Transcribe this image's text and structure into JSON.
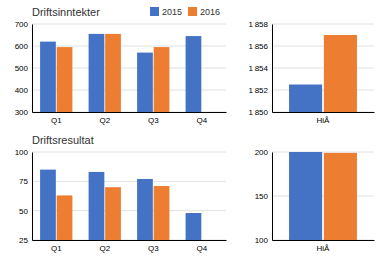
{
  "chart_data": [
    {
      "type": "bar",
      "title": "Driftsinntekter",
      "categories": [
        "Q1",
        "Q2",
        "Q3",
        "Q4"
      ],
      "series": [
        {
          "name": "2015",
          "color": "#4472C4",
          "values": [
            620,
            655,
            570,
            645
          ]
        },
        {
          "name": "2016",
          "color": "#ED7D31",
          "values": [
            595,
            655,
            595,
            null
          ]
        }
      ],
      "ylim": [
        300,
        700
      ],
      "yticks": [
        300,
        400,
        500,
        600,
        700
      ],
      "grid": true,
      "legend": "top"
    },
    {
      "type": "bar",
      "title": "Driftsresultat",
      "categories": [
        "Q1",
        "Q2",
        "Q3",
        "Q4"
      ],
      "series": [
        {
          "color": "#4472C4",
          "values": [
            85,
            83,
            77,
            48
          ]
        },
        {
          "color": "#ED7D31",
          "values": [
            63,
            70,
            71,
            null
          ]
        }
      ],
      "ylim": [
        25,
        100
      ],
      "yticks": [
        25,
        50,
        75,
        100
      ],
      "grid": true
    },
    {
      "type": "bar",
      "categories": [
        "HiÅ"
      ],
      "series": [
        {
          "color": "#4472C4",
          "values": [
            1852.5
          ]
        },
        {
          "color": "#ED7D31",
          "values": [
            1857.0
          ]
        }
      ],
      "ylim": [
        1850,
        1858
      ],
      "yticks": [
        {
          "value": 1850,
          "label": "1 850"
        },
        {
          "value": 1852,
          "label": "1 852"
        },
        {
          "value": 1854,
          "label": "1 854"
        },
        {
          "value": 1856,
          "label": "1 856"
        },
        {
          "value": 1858,
          "label": "1 858"
        }
      ],
      "grid": true
    },
    {
      "type": "bar",
      "categories": [
        "HiÅ"
      ],
      "series": [
        {
          "color": "#4472C4",
          "values": [
            200
          ]
        },
        {
          "color": "#ED7D31",
          "values": [
            199
          ]
        }
      ],
      "ylim": [
        100,
        200
      ],
      "yticks": [
        100,
        150,
        200
      ],
      "grid": true
    }
  ]
}
